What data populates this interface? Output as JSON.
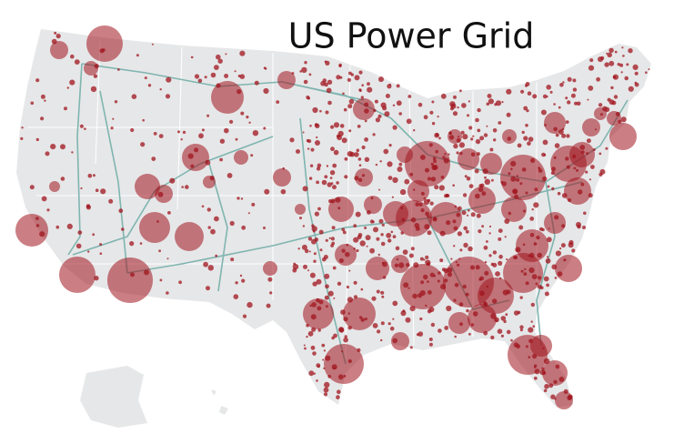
{
  "title": "US Power Grid"
}
